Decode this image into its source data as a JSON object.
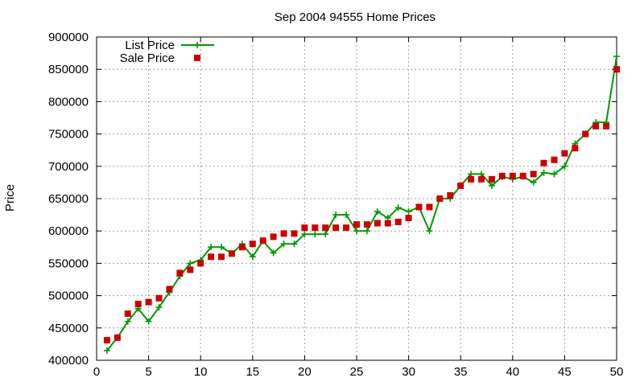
{
  "chart_data": {
    "type": "line",
    "title": "Sep 2004 94555 Home Prices",
    "xlabel": "",
    "ylabel": "Price",
    "xlim": [
      0,
      50
    ],
    "ylim": [
      400000,
      900000
    ],
    "x_ticks": [
      0,
      5,
      10,
      15,
      20,
      25,
      30,
      35,
      40,
      45,
      50
    ],
    "y_ticks": [
      400000,
      450000,
      500000,
      550000,
      600000,
      650000,
      700000,
      750000,
      800000,
      850000,
      900000
    ],
    "grid": true,
    "legend_position": "top-left",
    "series": [
      {
        "name": "List Price",
        "style": "line+markers",
        "marker": "plus",
        "color": "#009900",
        "x": [
          1,
          2,
          3,
          4,
          5,
          6,
          7,
          8,
          9,
          10,
          11,
          12,
          13,
          14,
          15,
          16,
          17,
          18,
          19,
          20,
          21,
          22,
          23,
          24,
          25,
          26,
          27,
          28,
          29,
          30,
          31,
          32,
          33,
          34,
          35,
          36,
          37,
          38,
          39,
          40,
          41,
          42,
          43,
          44,
          45,
          46,
          47,
          48,
          49,
          50
        ],
        "y": [
          415000,
          435000,
          460000,
          480000,
          460000,
          482000,
          505000,
          530000,
          550000,
          555000,
          575000,
          575000,
          565000,
          580000,
          560000,
          585000,
          566000,
          580000,
          580000,
          595000,
          595000,
          595000,
          625000,
          625000,
          600000,
          600000,
          630000,
          620000,
          636000,
          630000,
          637000,
          600000,
          650000,
          650000,
          670000,
          688000,
          688000,
          670000,
          684000,
          680000,
          684000,
          675000,
          690000,
          688000,
          700000,
          735000,
          750000,
          768000,
          768000,
          870000
        ]
      },
      {
        "name": "Sale Price",
        "style": "markers",
        "marker": "square",
        "color": "#cc0000",
        "x": [
          1,
          2,
          3,
          4,
          5,
          6,
          7,
          8,
          9,
          10,
          11,
          12,
          13,
          14,
          15,
          16,
          17,
          18,
          19,
          20,
          21,
          22,
          23,
          24,
          25,
          26,
          27,
          28,
          29,
          30,
          31,
          32,
          33,
          34,
          35,
          36,
          37,
          38,
          39,
          40,
          41,
          42,
          43,
          44,
          45,
          46,
          47,
          48,
          49,
          50
        ],
        "y": [
          431000,
          435000,
          472000,
          487000,
          490000,
          496000,
          510000,
          535000,
          540000,
          550000,
          560000,
          560000,
          565000,
          575000,
          580000,
          585000,
          591000,
          596000,
          596000,
          605000,
          605000,
          605000,
          605000,
          605000,
          610000,
          610000,
          612000,
          612000,
          614000,
          620000,
          637000,
          637000,
          650000,
          655000,
          670000,
          680000,
          680000,
          680000,
          685000,
          685000,
          685000,
          688000,
          705000,
          710000,
          720000,
          728000,
          750000,
          762000,
          762000,
          850000
        ]
      }
    ]
  }
}
